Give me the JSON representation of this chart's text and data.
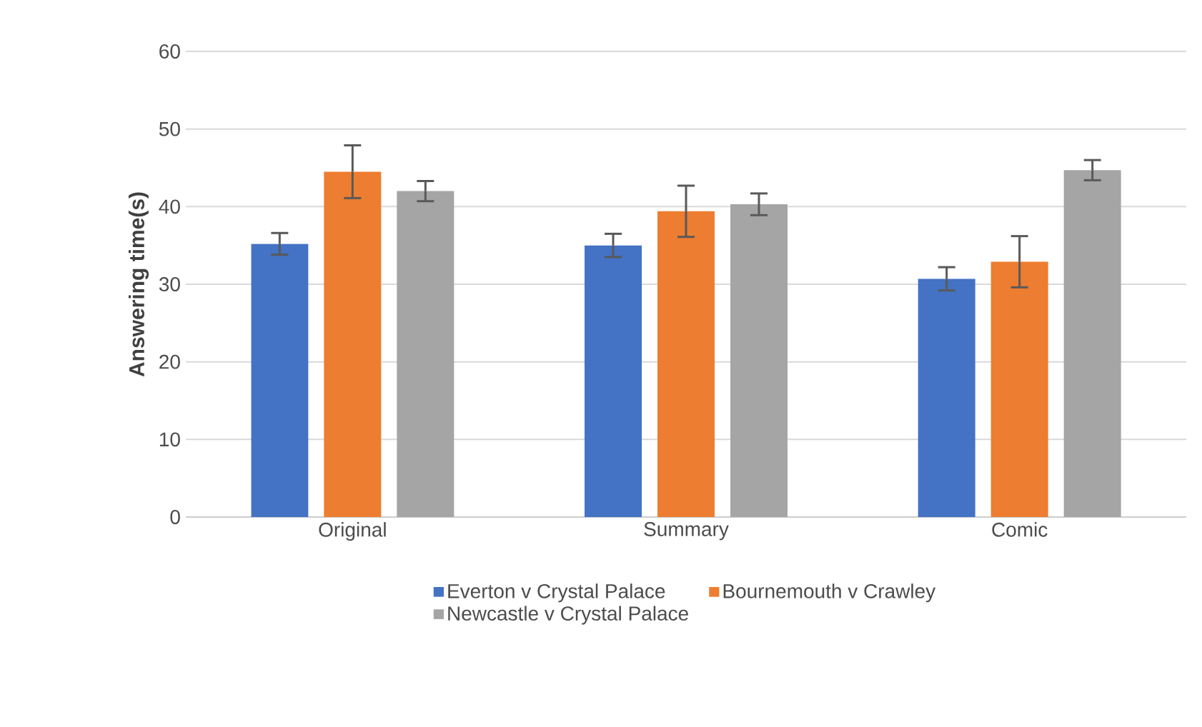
{
  "chart_data": {
    "type": "bar",
    "ylabel": "Answering time(s)",
    "categories": [
      "Original",
      "Summary",
      "Comic"
    ],
    "series": [
      {
        "name": "Everton v Crystal Palace",
        "color": "#4472c4",
        "values": [
          35.2,
          35.0,
          30.7
        ],
        "errors": [
          1.4,
          1.5,
          1.5
        ]
      },
      {
        "name": "Bournemouth v Crawley",
        "color": "#ed7d31",
        "values": [
          44.5,
          39.4,
          32.9
        ],
        "errors": [
          3.4,
          3.3,
          3.3
        ]
      },
      {
        "name": "Newcastle v Crystal Palace",
        "color": "#a5a5a5",
        "values": [
          42.0,
          40.3,
          44.7
        ],
        "errors": [
          1.3,
          1.4,
          1.3
        ]
      }
    ],
    "ylim": [
      0,
      60
    ],
    "yticks": [
      0,
      10,
      20,
      30,
      40,
      50,
      60
    ],
    "grid": "y",
    "legend": "bottom"
  }
}
